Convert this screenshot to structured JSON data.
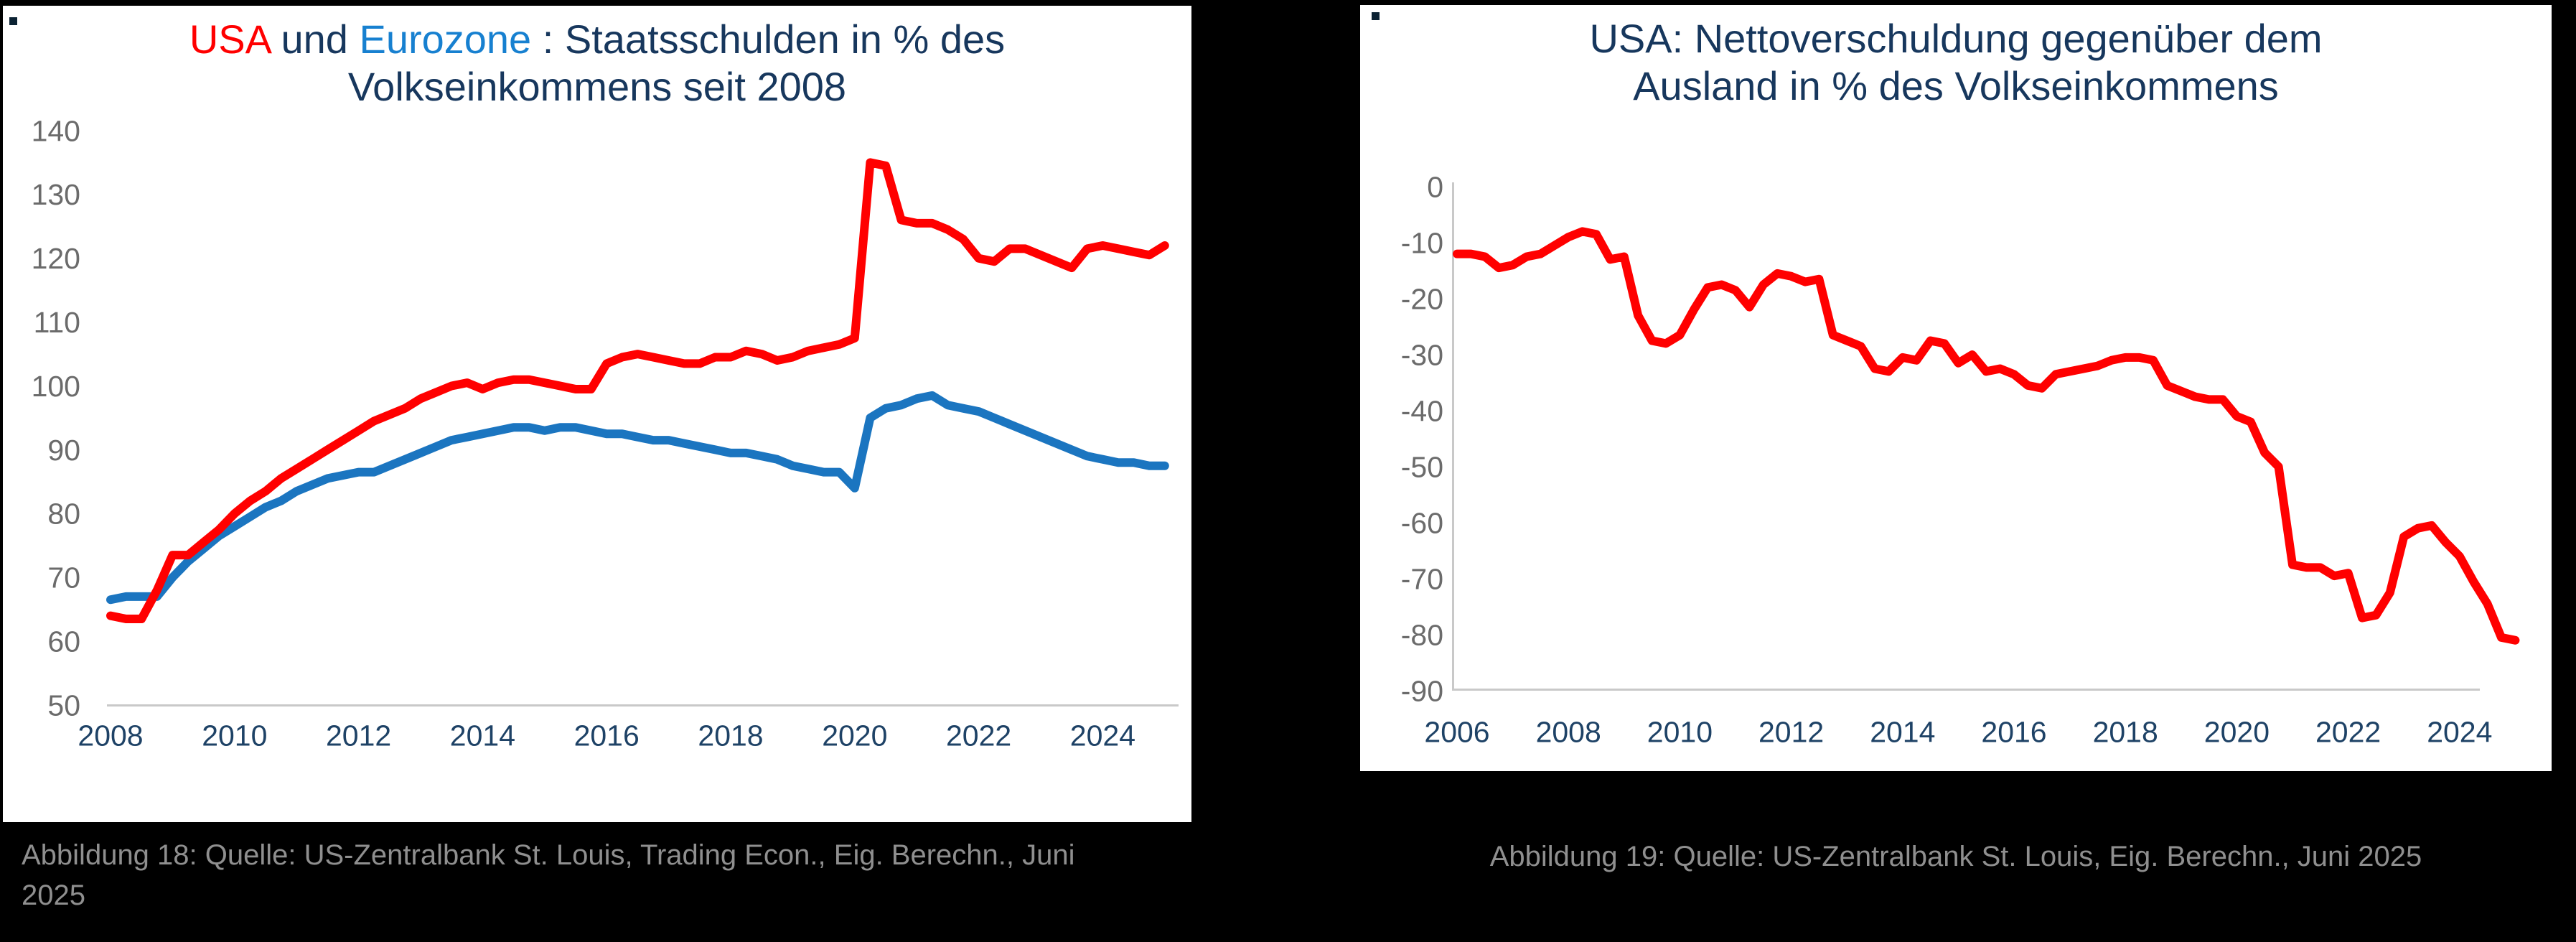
{
  "page": {
    "background": "#000000"
  },
  "colors": {
    "navy": "#17375D",
    "bright_blue": "#1780D0",
    "red": "#FF0000",
    "y_tick_gray": "#6B6B6B",
    "x_tick_navy": "#1E4266",
    "axis_line_gray": "#C9C9C9",
    "caption_gray": "#8F8F8F",
    "panel_white": "#FFFFFF"
  },
  "panels": [
    {
      "caption": "Abbildung 18: Quelle: US-Zentralbank St. Louis, Trading Econ., Eig. Berechn., Juni 2025",
      "title_lines": [
        {
          "segments": [
            {
              "text": "USA",
              "color": "#FF0000"
            },
            {
              "text": " und ",
              "color": "#17375D"
            },
            {
              "text": "Eurozone",
              "color": "#1780D0"
            },
            {
              "text": " : Staatsschulden in % des",
              "color": "#17375D"
            }
          ]
        },
        {
          "segments": [
            {
              "text": "Volkseinkommens seit 2008",
              "color": "#17375D"
            }
          ]
        }
      ]
    },
    {
      "caption": "Abbildung 19: Quelle: US-Zentralbank St. Louis, Eig. Berechn., Juni 2025",
      "title_lines": [
        {
          "segments": [
            {
              "text": "USA: Nettoverschuldung gegenüber dem",
              "color": "#17375D"
            }
          ]
        },
        {
          "segments": [
            {
              "text": "Ausland in % des Volkseinkommens",
              "color": "#17375D"
            }
          ]
        }
      ]
    }
  ],
  "chart_data": [
    {
      "type": "line",
      "title": "USA und Eurozone : Staatsschulden in % des Volkseinkommens seit 2008",
      "xlabel": "",
      "ylabel": "Staatsschulden in % des Volkseinkommens",
      "x_start_year": 2008,
      "x_step_years": 0.25,
      "xlim": [
        2008,
        2025.25
      ],
      "ylim": [
        50,
        140
      ],
      "grid": false,
      "legend": "colored title words",
      "xticks": [
        "2008",
        "2010",
        "2012",
        "2014",
        "2016",
        "2018",
        "2020",
        "2022",
        "2024"
      ],
      "yticks": [
        "140",
        "130",
        "120",
        "110",
        "100",
        "90",
        "80",
        "70",
        "60",
        "50"
      ],
      "tick_color_y": "#6B6B6B",
      "tick_color_x": "#1E4266",
      "axis_line_color": "#C9C9C9",
      "series": [
        {
          "name": "USA",
          "color": "#FF0000",
          "values": [
            64,
            63.5,
            63.5,
            68,
            73.5,
            73.5,
            75.5,
            77.5,
            80,
            82,
            83.5,
            85.5,
            87,
            88.5,
            90,
            91.5,
            93,
            94.5,
            95.5,
            96.5,
            98,
            99,
            100,
            100.5,
            99.5,
            100.5,
            101,
            101,
            100.5,
            100,
            99.5,
            99.5,
            103.5,
            104.5,
            105,
            104.5,
            104,
            103.5,
            103.5,
            104.5,
            104.5,
            105.5,
            105,
            104,
            104.5,
            105.5,
            106,
            106.5,
            107.5,
            135,
            134.5,
            126,
            125.5,
            125.5,
            124.5,
            123,
            120,
            119.5,
            121.5,
            121.5,
            120.5,
            119.5,
            118.5,
            121.5,
            122,
            121.5,
            121,
            120.5,
            122
          ]
        },
        {
          "name": "Eurozone",
          "color": "#1B75C0",
          "values": [
            66.5,
            67,
            67,
            67,
            70,
            72.5,
            74.5,
            76.5,
            78,
            79.5,
            81,
            82,
            83.5,
            84.5,
            85.5,
            86,
            86.5,
            86.5,
            87.5,
            88.5,
            89.5,
            90.5,
            91.5,
            92,
            92.5,
            93,
            93.5,
            93.5,
            93,
            93.5,
            93.5,
            93,
            92.5,
            92.5,
            92,
            91.5,
            91.5,
            91,
            90.5,
            90,
            89.5,
            89.5,
            89,
            88.5,
            87.5,
            87,
            86.5,
            86.5,
            84,
            95,
            96.5,
            97,
            98,
            98.5,
            97,
            96.5,
            96,
            95,
            94,
            93,
            92,
            91,
            90,
            89,
            88.5,
            88,
            88,
            87.5,
            87.5
          ]
        }
      ]
    },
    {
      "type": "line",
      "title": "USA: Nettoverschuldung gegenüber dem Ausland in % des Volkseinkommens",
      "xlabel": "",
      "ylabel": "Nettoverschuldung gegenüber dem Ausland in % des Volkseinkommens",
      "x_start_year": 2006,
      "x_step_years": 0.25,
      "xlim": [
        2006,
        2025.25
      ],
      "ylim": [
        -90,
        0
      ],
      "grid": false,
      "legend": "none",
      "xticks": [
        "2006",
        "2008",
        "2010",
        "2012",
        "2014",
        "2016",
        "2018",
        "2020",
        "2022",
        "2024"
      ],
      "yticks": [
        "0",
        "-10",
        "-20",
        "-30",
        "-40",
        "-50",
        "-60",
        "-70",
        "-80",
        "-90"
      ],
      "tick_color_y": "#6B6B6B",
      "tick_color_x": "#1E4266",
      "axis_line_color": "#C9C9C9",
      "series": [
        {
          "name": "USA Nettoverschuldung",
          "color": "#FF0000",
          "values": [
            -12,
            -12,
            -12.5,
            -14.5,
            -14,
            -12.5,
            -12,
            -10.5,
            -9,
            -8,
            -8.5,
            -13,
            -12.5,
            -23,
            -27.5,
            -28,
            -26.5,
            -22,
            -18,
            -17.5,
            -18.5,
            -21.5,
            -17.5,
            -15.5,
            -16,
            -17,
            -16.5,
            -26.5,
            -27.5,
            -28.5,
            -32.5,
            -33,
            -30.5,
            -31,
            -27.5,
            -28,
            -31.5,
            -30,
            -33,
            -32.5,
            -33.5,
            -35.5,
            -36,
            -33.5,
            -33,
            -32.5,
            -32,
            -31,
            -30.5,
            -30.5,
            -31,
            -35.5,
            -36.5,
            -37.5,
            -38,
            -38,
            -41,
            -42,
            -47.5,
            -50,
            -67.5,
            -68,
            -68,
            -69.5,
            -69,
            -77,
            -76.5,
            -72.5,
            -62.5,
            -61,
            -60.5,
            -63.5,
            -66,
            -70.5,
            -74.5,
            -80.5,
            -81
          ]
        }
      ]
    }
  ]
}
